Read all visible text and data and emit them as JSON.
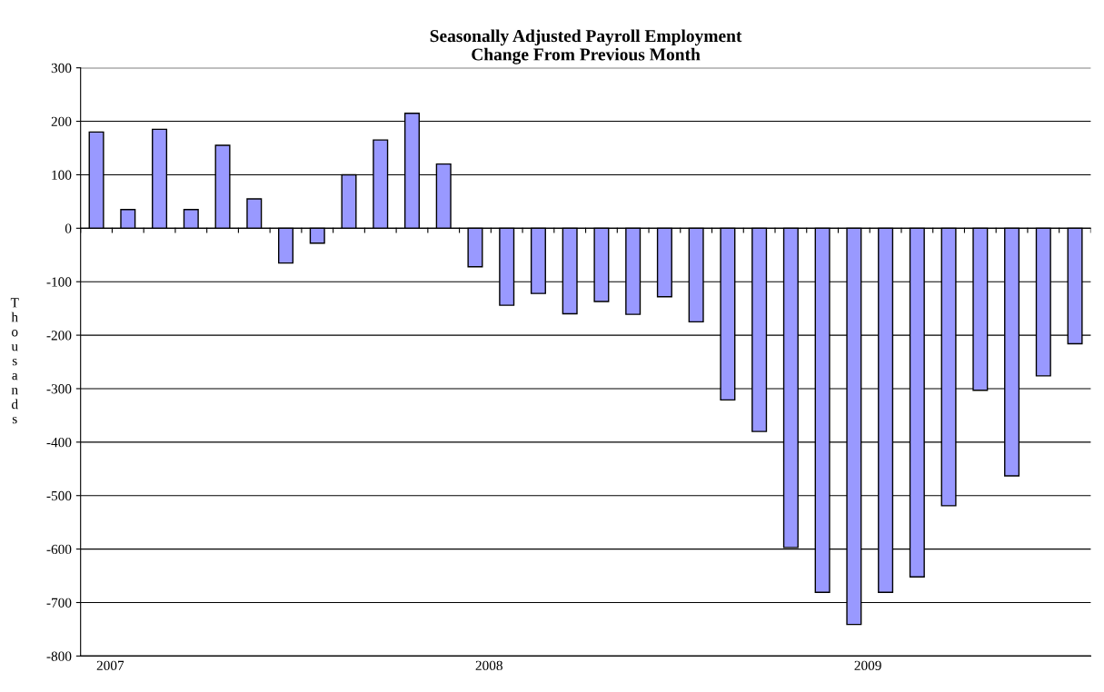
{
  "chart_data": {
    "type": "bar",
    "title": "Seasonally Adjusted Payroll Employment\nChange From Previous Month",
    "ylabel": "Thousands",
    "categories": [
      "2007",
      null,
      null,
      null,
      null,
      null,
      null,
      null,
      null,
      null,
      null,
      null,
      "2008",
      null,
      null,
      null,
      null,
      null,
      null,
      null,
      null,
      null,
      null,
      null,
      "2009",
      null,
      null,
      null,
      null,
      null,
      null,
      null
    ],
    "values": [
      180,
      35,
      185,
      35,
      155,
      55,
      -65,
      -28,
      100,
      165,
      215,
      120,
      -72,
      -144,
      -122,
      -160,
      -137,
      -161,
      -128,
      -175,
      -321,
      -380,
      -597,
      -681,
      -741,
      -681,
      -652,
      -519,
      -303,
      -463,
      -276,
      -216
    ],
    "color": "#9999ff",
    "ylim": [
      -800,
      300
    ],
    "yticks": [
      -800,
      -700,
      -600,
      -500,
      -400,
      -300,
      -200,
      -100,
      0,
      100,
      200,
      300
    ],
    "grid": "y"
  }
}
